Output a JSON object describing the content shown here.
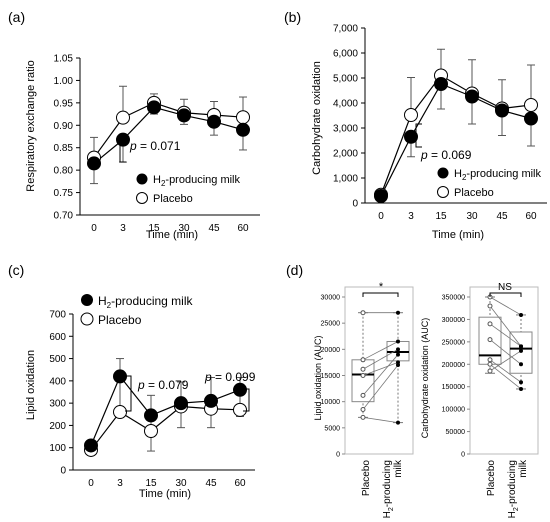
{
  "panels": [
    {
      "id": "a",
      "panel_label": "(a)",
      "ylabel": "Respiratory exchange ratio",
      "xlabel": "Time (min)",
      "ylim": [
        0.7,
        1.05
      ],
      "yticks": [
        "0.70",
        "0.75",
        "0.80",
        "0.85",
        "0.90",
        "0.95",
        "1.00",
        "1.05"
      ],
      "annotations": [
        {
          "text": "p = 0.071",
          "between": [
            0,
            3
          ]
        }
      ],
      "legend": {
        "position": "bottom-right",
        "entries": [
          "H2-producing milk",
          "Placebo"
        ]
      }
    },
    {
      "id": "b",
      "panel_label": "(b)",
      "ylabel": "Carbohydrate oxidation",
      "xlabel": "Time (min)",
      "ylim": [
        0,
        7000
      ],
      "yticks": [
        "0",
        "1,000",
        "2,000",
        "3,000",
        "4,000",
        "5,000",
        "6,000",
        "7,000"
      ],
      "annotations": [
        {
          "text": "p = 0.069",
          "between": [
            3,
            15
          ]
        }
      ],
      "legend": {
        "position": "bottom-right",
        "entries": [
          "H2-producing milk",
          "Placebo"
        ]
      }
    },
    {
      "id": "c",
      "panel_label": "(c)",
      "ylabel": "Lipid oxidation",
      "xlabel": "Time (min)",
      "ylim": [
        0,
        700
      ],
      "yticks": [
        "0",
        "100",
        "200",
        "300",
        "400",
        "500",
        "600",
        "700"
      ],
      "annotations": [
        {
          "text": "p = 0.079",
          "at": 3
        },
        {
          "text": "p = 0.099",
          "at": 60
        }
      ],
      "legend": {
        "position": "top-left",
        "entries": [
          "H2-producing milk",
          "Placebo"
        ]
      }
    },
    {
      "id": "d",
      "panel_label": "(d)",
      "subplots": [
        {
          "ylabel": "Lipid oxidation (AUC)",
          "yticks": [
            "0",
            "5000",
            "10000",
            "15000",
            "20000",
            "25000",
            "30000"
          ],
          "sig": "*"
        },
        {
          "ylabel": "Carbohydrate oxidation (AUC)",
          "yticks": [
            "0",
            "50000",
            "100000",
            "150000",
            "200000",
            "250000",
            "300000",
            "350000"
          ],
          "sig": "NS"
        }
      ],
      "groups": [
        "Placebo",
        "H2-producing milk"
      ]
    }
  ],
  "chart_data": [
    {
      "type": "line",
      "x": [
        0,
        3,
        15,
        30,
        45,
        60
      ],
      "xticks": [
        "0",
        "3",
        "15",
        "30",
        "45",
        "60"
      ],
      "ylim": [
        0.7,
        1.05
      ],
      "series": [
        {
          "name": "H2-producing milk",
          "marker": "filled",
          "values": [
            0.815,
            0.868,
            0.94,
            0.922,
            0.908,
            0.89
          ],
          "errors": [
            0.045,
            0.05,
            0.015,
            0.02,
            0.03,
            0.045
          ]
        },
        {
          "name": "Placebo",
          "marker": "open",
          "values": [
            0.828,
            0.917,
            0.95,
            0.928,
            0.923,
            0.918
          ],
          "errors": [
            0.045,
            0.07,
            0.02,
            0.03,
            0.03,
            0.045
          ]
        }
      ]
    },
    {
      "type": "line",
      "x": [
        0,
        3,
        15,
        30,
        45,
        60
      ],
      "xticks": [
        "0",
        "3",
        "15",
        "30",
        "45",
        "60"
      ],
      "ylim": [
        0,
        7000
      ],
      "series": [
        {
          "name": "H2-producing milk",
          "marker": "filled",
          "values": [
            280,
            2650,
            4760,
            4260,
            3700,
            3380
          ],
          "errors": [
            150,
            800,
            1000,
            1100,
            1000,
            1100
          ]
        },
        {
          "name": "Placebo",
          "marker": "open",
          "values": [
            330,
            3520,
            5100,
            4380,
            3780,
            3920
          ],
          "errors": [
            150,
            1500,
            1050,
            1350,
            1150,
            1600
          ]
        }
      ]
    },
    {
      "type": "line",
      "x": [
        0,
        3,
        15,
        30,
        45,
        60
      ],
      "xticks": [
        "0",
        "3",
        "15",
        "30",
        "45",
        "60"
      ],
      "ylim": [
        0,
        700
      ],
      "series": [
        {
          "name": "H2-producing milk",
          "marker": "filled",
          "values": [
            110,
            420,
            245,
            300,
            310,
            360
          ],
          "errors": [
            30,
            180,
            160,
            110,
            120,
            120
          ]
        },
        {
          "name": "Placebo",
          "marker": "open",
          "values": [
            90,
            260,
            175,
            285,
            275,
            270
          ],
          "errors": [
            30,
            240,
            160,
            110,
            140,
            145
          ]
        }
      ]
    },
    {
      "type": "box",
      "ylabel": "Lipid oxidation (AUC)",
      "ylim": [
        0,
        30000
      ],
      "categories": [
        "Placebo",
        "H2-producing milk"
      ],
      "boxes": [
        {
          "min": 7000,
          "q1": 10000,
          "median": 15200,
          "q3": 18000,
          "max": 27000
        },
        {
          "min": 6000,
          "q1": 17800,
          "median": 19500,
          "q3": 21500,
          "max": 27000
        }
      ],
      "paired": [
        [
          7000,
          6000
        ],
        [
          8500,
          17000
        ],
        [
          11200,
          19000
        ],
        [
          15000,
          17500
        ],
        [
          16200,
          20000
        ],
        [
          18000,
          21500
        ],
        [
          27000,
          27000
        ]
      ]
    },
    {
      "type": "box",
      "ylabel": "Carbohydrate oxidation (AUC)",
      "ylim": [
        0,
        350000
      ],
      "categories": [
        "Placebo",
        "H2-producing milk"
      ],
      "boxes": [
        {
          "min": 180000,
          "q1": 200000,
          "median": 220000,
          "q3": 305000,
          "max": 350000
        },
        {
          "min": 145000,
          "q1": 180000,
          "median": 235000,
          "q3": 272000,
          "max": 310000
        }
      ],
      "paired": [
        [
          350000,
          310000
        ],
        [
          330000,
          240000
        ],
        [
          290000,
          240000
        ],
        [
          255000,
          200000
        ],
        [
          210000,
          160000
        ],
        [
          200000,
          145000
        ],
        [
          185000,
          230000
        ]
      ]
    }
  ]
}
